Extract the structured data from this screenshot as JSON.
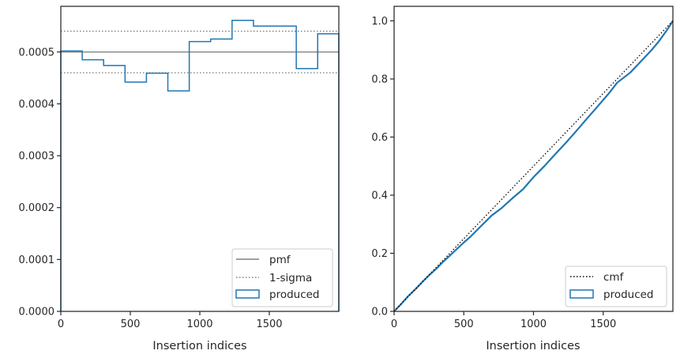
{
  "chart_data": [
    {
      "type": "step-histogram",
      "xlabel": "Insertion indices",
      "ylabel": "",
      "xlim": [
        0,
        2000
      ],
      "ylim": [
        0,
        0.000588
      ],
      "xticks": [
        0,
        500,
        1000,
        1500
      ],
      "xtick_labels": [
        "0",
        "500",
        "1000",
        "1500"
      ],
      "yticks": [
        0,
        0.0001,
        0.0002,
        0.0003,
        0.0004,
        0.0005
      ],
      "ytick_labels": [
        "0.0000",
        "0.0001",
        "0.0002",
        "0.0003",
        "0.0004",
        "0.0005"
      ],
      "pmf": 0.0005,
      "sigma_upper": 0.00054,
      "sigma_lower": 0.00046,
      "bin_edges": [
        0,
        154,
        308,
        462,
        616,
        770,
        924,
        1078,
        1232,
        1386,
        1540,
        1694,
        1848,
        2000
      ],
      "values": [
        0.000502,
        0.000485,
        0.000474,
        0.000442,
        0.000459,
        0.000425,
        0.00052,
        0.000525,
        0.000561,
        0.00055,
        0.00055,
        0.000468,
        0.000535
      ],
      "legend": {
        "position": "bottom-right",
        "entries": [
          {
            "label": "pmf",
            "style": "solid-line",
            "color": "#808080"
          },
          {
            "label": "1-sigma",
            "style": "dotted-line",
            "color": "#808080"
          },
          {
            "label": "produced",
            "style": "box",
            "color": "#1f77b4"
          }
        ]
      }
    },
    {
      "type": "line",
      "xlabel": "Insertion indices",
      "ylabel": "",
      "xlim": [
        0,
        2000
      ],
      "ylim": [
        0,
        1.05
      ],
      "xticks": [
        0,
        500,
        1000,
        1500
      ],
      "xtick_labels": [
        "0",
        "500",
        "1000",
        "1500"
      ],
      "yticks": [
        0,
        0.2,
        0.4,
        0.6,
        0.8,
        1.0
      ],
      "ytick_labels": [
        "0.0",
        "0.2",
        "0.4",
        "0.6",
        "0.8",
        "1.0"
      ],
      "cmf": {
        "x": [
          0,
          2000
        ],
        "y": [
          0,
          1.0
        ]
      },
      "produced": {
        "x": [
          0,
          50,
          100,
          154,
          200,
          250,
          308,
          350,
          400,
          462,
          500,
          550,
          616,
          700,
          770,
          850,
          924,
          1000,
          1078,
          1150,
          1232,
          1300,
          1386,
          1450,
          1540,
          1600,
          1694,
          1750,
          1848,
          1900,
          1960,
          2000
        ],
        "y": [
          0,
          0.025,
          0.052,
          0.077,
          0.1,
          0.124,
          0.149,
          0.17,
          0.192,
          0.22,
          0.237,
          0.258,
          0.29,
          0.33,
          0.355,
          0.39,
          0.42,
          0.462,
          0.5,
          0.538,
          0.58,
          0.617,
          0.665,
          0.7,
          0.75,
          0.787,
          0.822,
          0.85,
          0.9,
          0.93,
          0.97,
          1.0
        ]
      },
      "legend": {
        "position": "bottom-right",
        "entries": [
          {
            "label": "cmf",
            "style": "dotted-line",
            "color": "#000000"
          },
          {
            "label": "produced",
            "style": "box",
            "color": "#1f77b4"
          }
        ]
      }
    }
  ],
  "colors": {
    "produced": "#1f77b4",
    "reference": "#808080",
    "cmf": "#000000",
    "axes": "#262626"
  }
}
